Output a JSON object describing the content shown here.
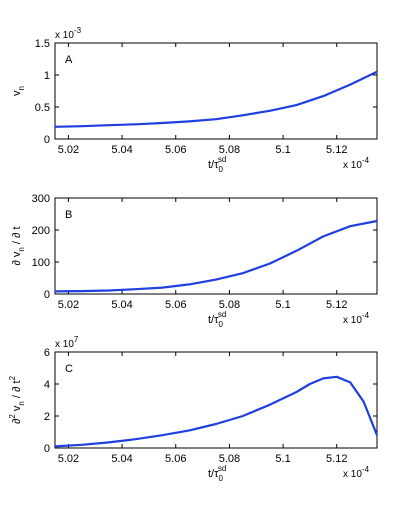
{
  "chart_data": [
    {
      "type": "line",
      "panel_label": "A",
      "ylabel": "v_n",
      "xlabel": "t/τ_0^sd",
      "x_multiplier": "x 10",
      "x_exponent": "-4",
      "y_multiplier": "x 10",
      "y_exponent": "-3",
      "xlim": [
        5.015,
        5.135
      ],
      "ylim": [
        0,
        1.5
      ],
      "xticks": [
        5.02,
        5.04,
        5.06,
        5.08,
        5.1,
        5.12
      ],
      "xtick_labels": [
        "5.02",
        "5.04",
        "5.06",
        "5.08",
        "5.1",
        "5.12"
      ],
      "yticks": [
        0,
        0.5,
        1,
        1.5
      ],
      "ytick_labels": [
        "0",
        "0.5",
        "1",
        "1.5"
      ],
      "grid": false,
      "color": "#1f3fe0",
      "series": [
        {
          "x": [
            5.015,
            5.025,
            5.035,
            5.045,
            5.055,
            5.065,
            5.075,
            5.085,
            5.095,
            5.105,
            5.115,
            5.125,
            5.135
          ],
          "values": [
            0.19,
            0.2,
            0.215,
            0.23,
            0.25,
            0.275,
            0.31,
            0.37,
            0.44,
            0.53,
            0.67,
            0.85,
            1.05
          ]
        }
      ]
    },
    {
      "type": "line",
      "panel_label": "B",
      "ylabel": "∂ v_n / ∂ t",
      "xlabel": "t/τ_0^sd",
      "x_multiplier": "x 10",
      "x_exponent": "-4",
      "xlim": [
        5.015,
        5.135
      ],
      "ylim": [
        0,
        300
      ],
      "xticks": [
        5.02,
        5.04,
        5.06,
        5.08,
        5.1,
        5.12
      ],
      "xtick_labels": [
        "5.02",
        "5.04",
        "5.06",
        "5.08",
        "5.1",
        "5.12"
      ],
      "yticks": [
        0,
        100,
        200,
        300
      ],
      "ytick_labels": [
        "0",
        "100",
        "200",
        "300"
      ],
      "grid": false,
      "color": "#1f3fe0",
      "series": [
        {
          "x": [
            5.015,
            5.025,
            5.035,
            5.045,
            5.055,
            5.065,
            5.075,
            5.085,
            5.095,
            5.105,
            5.115,
            5.125,
            5.135
          ],
          "values": [
            8,
            9,
            11,
            15,
            20,
            30,
            45,
            65,
            95,
            135,
            180,
            212,
            228
          ]
        }
      ]
    },
    {
      "type": "line",
      "panel_label": "C",
      "ylabel": "∂² v_n / ∂ t²",
      "xlabel": "t/τ_0^sd",
      "x_multiplier": "x 10",
      "x_exponent": "-4",
      "y_multiplier": "x 10",
      "y_exponent": "7",
      "xlim": [
        5.015,
        5.135
      ],
      "ylim": [
        0,
        6
      ],
      "xticks": [
        5.02,
        5.04,
        5.06,
        5.08,
        5.1,
        5.12
      ],
      "xtick_labels": [
        "5.02",
        "5.04",
        "5.06",
        "5.08",
        "5.1",
        "5.12"
      ],
      "yticks": [
        0,
        2,
        4,
        6
      ],
      "ytick_labels": [
        "0",
        "2",
        "4",
        "6"
      ],
      "grid": false,
      "color": "#1f3fe0",
      "series": [
        {
          "x": [
            5.015,
            5.025,
            5.035,
            5.045,
            5.055,
            5.065,
            5.075,
            5.085,
            5.095,
            5.105,
            5.11,
            5.115,
            5.12,
            5.125,
            5.13,
            5.135
          ],
          "values": [
            0.1,
            0.2,
            0.35,
            0.55,
            0.8,
            1.1,
            1.5,
            2.0,
            2.7,
            3.5,
            4.0,
            4.35,
            4.45,
            4.1,
            2.9,
            0.8
          ]
        }
      ]
    }
  ]
}
